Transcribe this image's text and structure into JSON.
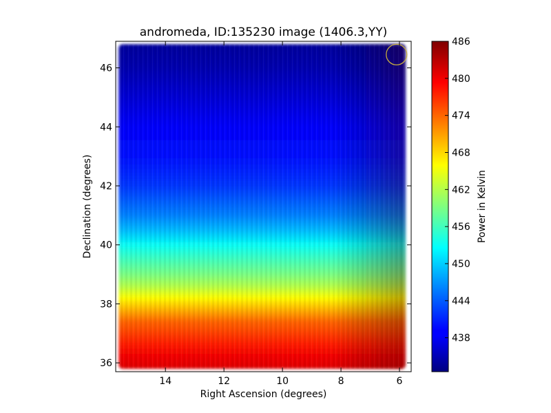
{
  "chart_data": {
    "type": "heatmap",
    "title": "andromeda, ID:135230 image (1406.3,YY)",
    "xlabel": "Right Ascension (degrees)",
    "ylabel": "Declination (degrees)",
    "colorbar_label": "Power in Kelvin",
    "x_range": [
      15.7,
      5.6
    ],
    "y_range": [
      35.7,
      46.9
    ],
    "x_ticks": [
      14,
      12,
      10,
      8,
      6
    ],
    "y_ticks": [
      36,
      38,
      40,
      42,
      44,
      46
    ],
    "colorbar_range": [
      432.5,
      486
    ],
    "colorbar_ticks": [
      438,
      444,
      450,
      456,
      462,
      468,
      474,
      480,
      486
    ],
    "colormap": "jet",
    "grid": false,
    "field_extent": {
      "ra": [
        15.6,
        5.8
      ],
      "dec": [
        35.8,
        46.8
      ]
    },
    "declination_profile": {
      "dec": [
        35.8,
        36.2,
        36.6,
        37.0,
        37.4,
        37.8,
        38.2,
        38.6,
        39.0,
        39.5,
        40.0,
        40.5,
        41.0,
        41.5,
        42.0,
        43.0,
        44.0,
        45.0,
        46.0,
        46.8
      ],
      "power": [
        481,
        480,
        478,
        476,
        474,
        470,
        466,
        462,
        459,
        456,
        453,
        449,
        446,
        444,
        442,
        440,
        439,
        437,
        435,
        434
      ]
    },
    "beam_marker": {
      "ra": 6.1,
      "dec": 46.45,
      "color": "#c8b040"
    }
  }
}
